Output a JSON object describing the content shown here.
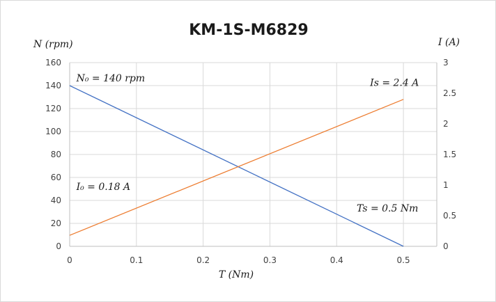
{
  "chart_data": {
    "type": "line",
    "title": "KM-1S-M6829",
    "xlabel": "T (Nm)",
    "ylabel_left": "N (rpm)",
    "ylabel_right": "I (A)",
    "xlim": [
      0,
      0.55
    ],
    "ylim_left": [
      0,
      160
    ],
    "ylim_right": [
      0,
      3
    ],
    "x_ticks": [
      "0",
      "0.1",
      "0.2",
      "0.3",
      "0.4",
      "0.5"
    ],
    "y_left_ticks": [
      "0",
      "20",
      "40",
      "60",
      "80",
      "100",
      "120",
      "140",
      "160"
    ],
    "y_right_ticks": [
      "0",
      "0.5",
      "1",
      "1.5",
      "2",
      "2.5",
      "3"
    ],
    "grid": true,
    "series": [
      {
        "axis": "left",
        "color": "#4472c4",
        "x": [
          0,
          0.5
        ],
        "y": [
          140,
          0
        ]
      },
      {
        "axis": "right",
        "color": "#ed7d31",
        "x": [
          0,
          0.5
        ],
        "y": [
          0.18,
          2.4
        ]
      }
    ],
    "annotations": [
      {
        "text": "N₀ = 140 rpm",
        "x": 0.01,
        "y": 140,
        "axis": "left"
      },
      {
        "text": "Is = 2.4 A",
        "x": 0.45,
        "y": 2.55,
        "axis": "right"
      },
      {
        "text": "I₀ = 0.18 A",
        "x": 0.01,
        "y": 0.85,
        "axis": "right"
      },
      {
        "text": "Ts = 0.5 Nm",
        "x": 0.43,
        "y": 0.5,
        "axis": "right"
      }
    ]
  }
}
